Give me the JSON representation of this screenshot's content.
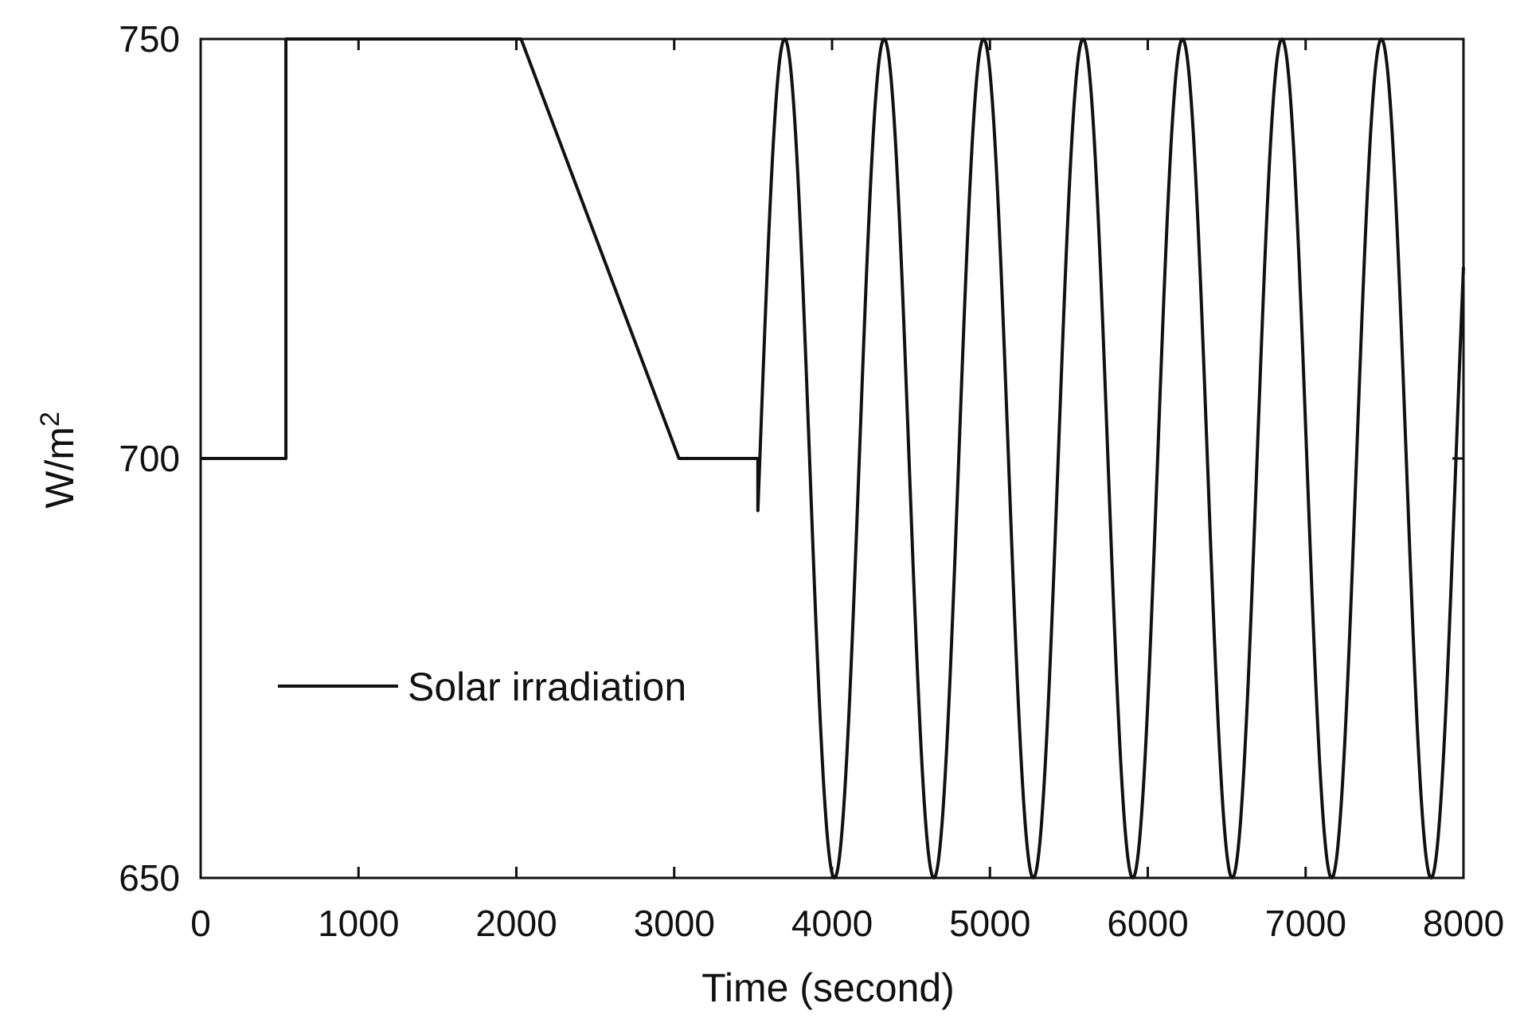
{
  "chart_data": {
    "type": "line",
    "title": "",
    "xlabel": "Time (second)",
    "ylabel_base": "W/m",
    "ylabel_sup": "2",
    "xlim": [
      0,
      8000
    ],
    "ylim": [
      650,
      750
    ],
    "xticks": [
      0,
      1000,
      2000,
      3000,
      4000,
      5000,
      6000,
      7000,
      8000
    ],
    "yticks": [
      650,
      700,
      750
    ],
    "grid": false,
    "legend_position": "lower-left",
    "series": [
      {
        "name": "Solar irradiation",
        "color": "#111111",
        "segments": [
          {
            "kind": "points",
            "x": [
              0,
              540,
              540,
              2030,
              3030,
              3530,
              3530
            ],
            "y": [
              700,
              700,
              750,
              750,
              700,
              700,
              700
            ]
          },
          {
            "kind": "sine",
            "x_start": 3530,
            "x_end": 8000,
            "center": 700,
            "amplitude": 50,
            "first_peak_x": 3700,
            "period": 630
          }
        ]
      }
    ]
  }
}
